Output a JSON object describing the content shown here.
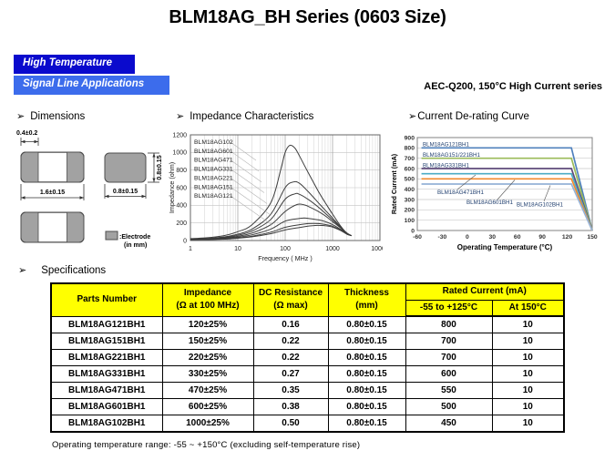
{
  "title": "BLM18AG_BH Series (0603 Size)",
  "badges": [
    {
      "label": "High Temperature",
      "bg": "#0A0ACD"
    },
    {
      "label": "Signal Line Applications",
      "bg": "#3C6CEC"
    }
  ],
  "subtitle": "AEC-Q200, 150°C High Current series",
  "sections": {
    "dimensions": {
      "arrow": "➢",
      "label": "Dimensions"
    },
    "impedance": {
      "arrow": "➢",
      "label": "Impedance  Characteristics"
    },
    "derating": {
      "arrow": "➢",
      "label": "Current  De-rating  Curve"
    },
    "specifications": {
      "arrow": "➢",
      "label": "Specifications"
    }
  },
  "dimensions_figure": {
    "top_width_dim": "0.4±0.2",
    "length_dim": "1.6±0.15",
    "side_height_dim": "0.8±0.15",
    "side_width_dim": "0.8±0.15",
    "legend_label": ":Electrode",
    "legend_unit": "(in mm)",
    "electrode_color": "#A2A2A2"
  },
  "chart_data": [
    {
      "type": "line",
      "title": "Impedance Characteristics",
      "xlabel": "Frequency ( MHz )",
      "ylabel": "Impedance (ohm)",
      "xscale": "log",
      "xlim": [
        1,
        10000
      ],
      "ylim": [
        0,
        1200
      ],
      "xticks": [
        1,
        10,
        100,
        1000,
        10000
      ],
      "yticks": [
        0,
        200,
        400,
        600,
        800,
        1000,
        1200
      ],
      "grid": true,
      "legend_position": "upper-left",
      "line_color": "#3d3d3d",
      "series": [
        {
          "name": "BLM18AG102",
          "points": [
            [
              1,
              22
            ],
            [
              2,
              30
            ],
            [
              5,
              55
            ],
            [
              10,
              100
            ],
            [
              20,
              180
            ],
            [
              50,
              430
            ],
            [
              80,
              800
            ],
            [
              100,
              1000
            ],
            [
              125,
              1080
            ],
            [
              160,
              1050
            ],
            [
              200,
              960
            ],
            [
              300,
              780
            ],
            [
              500,
              560
            ],
            [
              700,
              430
            ],
            [
              1000,
              300
            ],
            [
              1500,
              160
            ],
            [
              2000,
              85
            ],
            [
              2500,
              55
            ]
          ]
        },
        {
          "name": "BLM18AG601",
          "points": [
            [
              1,
              16
            ],
            [
              2,
              22
            ],
            [
              5,
              40
            ],
            [
              10,
              72
            ],
            [
              20,
              130
            ],
            [
              50,
              300
            ],
            [
              100,
              600
            ],
            [
              150,
              665
            ],
            [
              200,
              650
            ],
            [
              300,
              560
            ],
            [
              500,
              430
            ],
            [
              700,
              345
            ],
            [
              1000,
              255
            ],
            [
              1500,
              150
            ],
            [
              2000,
              85
            ],
            [
              2500,
              55
            ]
          ]
        },
        {
          "name": "BLM18AG471",
          "points": [
            [
              1,
              14
            ],
            [
              2,
              19
            ],
            [
              5,
              34
            ],
            [
              10,
              60
            ],
            [
              20,
              108
            ],
            [
              50,
              240
            ],
            [
              100,
              470
            ],
            [
              160,
              530
            ],
            [
              200,
              525
            ],
            [
              300,
              470
            ],
            [
              500,
              380
            ],
            [
              700,
              310
            ],
            [
              1000,
              235
            ],
            [
              1500,
              145
            ],
            [
              2000,
              82
            ],
            [
              2500,
              55
            ]
          ]
        },
        {
          "name": "BLM18AG331",
          "points": [
            [
              1,
              12
            ],
            [
              2,
              16
            ],
            [
              5,
              28
            ],
            [
              10,
              48
            ],
            [
              20,
              85
            ],
            [
              50,
              180
            ],
            [
              100,
              330
            ],
            [
              180,
              410
            ],
            [
              250,
              405
            ],
            [
              300,
              390
            ],
            [
              500,
              330
            ],
            [
              700,
              280
            ],
            [
              1000,
              215
            ],
            [
              1500,
              140
            ],
            [
              2000,
              80
            ],
            [
              2500,
              55
            ]
          ]
        },
        {
          "name": "BLM18AG221",
          "points": [
            [
              1,
              10
            ],
            [
              2,
              13
            ],
            [
              5,
              22
            ],
            [
              10,
              38
            ],
            [
              20,
              65
            ],
            [
              50,
              130
            ],
            [
              100,
              220
            ],
            [
              200,
              250
            ],
            [
              250,
              255
            ],
            [
              300,
              252
            ],
            [
              500,
              235
            ],
            [
              700,
              215
            ],
            [
              1000,
              180
            ],
            [
              1500,
              125
            ],
            [
              2000,
              78
            ],
            [
              2500,
              55
            ]
          ]
        },
        {
          "name": "BLM18AG151",
          "points": [
            [
              1,
              9
            ],
            [
              2,
              11
            ],
            [
              5,
              18
            ],
            [
              10,
              30
            ],
            [
              20,
              50
            ],
            [
              50,
              95
            ],
            [
              100,
              150
            ],
            [
              200,
              180
            ],
            [
              300,
              192
            ],
            [
              400,
              195
            ],
            [
              500,
              192
            ],
            [
              700,
              182
            ],
            [
              1000,
              162
            ],
            [
              1500,
              118
            ],
            [
              2000,
              75
            ],
            [
              2500,
              55
            ]
          ]
        },
        {
          "name": "BLM18AG121",
          "points": [
            [
              1,
              8
            ],
            [
              2,
              10
            ],
            [
              5,
              15
            ],
            [
              10,
              26
            ],
            [
              20,
              42
            ],
            [
              50,
              78
            ],
            [
              100,
              120
            ],
            [
              200,
              148
            ],
            [
              300,
              163
            ],
            [
              400,
              170
            ],
            [
              500,
              172
            ],
            [
              700,
              168
            ],
            [
              1000,
              152
            ],
            [
              1500,
              112
            ],
            [
              2000,
              72
            ],
            [
              2500,
              55
            ]
          ]
        }
      ]
    },
    {
      "type": "line",
      "title": "Current De-rating Curve",
      "xlabel": "Operating Temperature (°C)",
      "ylabel": "Rated Current (mA)",
      "xlim": [
        -60,
        150
      ],
      "ylim": [
        0,
        900
      ],
      "xticks": [
        -60,
        -30,
        0,
        30,
        60,
        90,
        120,
        150
      ],
      "yticks": [
        0,
        100,
        200,
        300,
        400,
        500,
        600,
        700,
        800,
        900
      ],
      "grid": true,
      "flat_from": -55,
      "flat_to": 125,
      "zero_at": 150,
      "label_color": "#1F3E6E",
      "series": [
        {
          "name": "BLM18AG121BH1",
          "value": 800,
          "color": "#4F81BD"
        },
        {
          "name": "BLM18AG151/221BH1",
          "value": 700,
          "color": "#9BBB59"
        },
        {
          "name": "BLM18AG331BH1",
          "value": 600,
          "color": "#5F497A"
        },
        {
          "name": "BLM18AG471BH1",
          "value": 550,
          "color": "#4BACC6"
        },
        {
          "name": "BLM18AG601BH1",
          "value": 500,
          "color": "#F28A2E"
        },
        {
          "name": "BLM18AG102BH1",
          "value": 450,
          "color": "#95B3D7"
        }
      ]
    }
  ],
  "spec_table": {
    "headers": {
      "parts": "Parts Number",
      "impedance_l1": "Impedance",
      "impedance_l2": "(Ω at 100 MHz)",
      "dcr_l1": "DC Resistance",
      "dcr_l2": "(Ω max)",
      "thickness_l1": "Thickness",
      "thickness_l2": "(mm)",
      "rated": "Rated Current  (mA)",
      "range1": "-55 to +125°C",
      "range2": "At 150°C"
    },
    "rows": [
      {
        "part": "BLM18AG121BH1",
        "impedance": "120±25%",
        "dcr": "0.16",
        "thickness": "0.80±0.15",
        "current_125": "800",
        "current_150": "10"
      },
      {
        "part": "BLM18AG151BH1",
        "impedance": "150±25%",
        "dcr": "0.22",
        "thickness": "0.80±0.15",
        "current_125": "700",
        "current_150": "10"
      },
      {
        "part": "BLM18AG221BH1",
        "impedance": "220±25%",
        "dcr": "0.22",
        "thickness": "0.80±0.15",
        "current_125": "700",
        "current_150": "10"
      },
      {
        "part": "BLM18AG331BH1",
        "impedance": "330±25%",
        "dcr": "0.27",
        "thickness": "0.80±0.15",
        "current_125": "600",
        "current_150": "10"
      },
      {
        "part": "BLM18AG471BH1",
        "impedance": "470±25%",
        "dcr": "0.35",
        "thickness": "0.80±0.15",
        "current_125": "550",
        "current_150": "10"
      },
      {
        "part": "BLM18AG601BH1",
        "impedance": "600±25%",
        "dcr": "0.38",
        "thickness": "0.80±0.15",
        "current_125": "500",
        "current_150": "10"
      },
      {
        "part": "BLM18AG102BH1",
        "impedance": "1000±25%",
        "dcr": "0.50",
        "thickness": "0.80±0.15",
        "current_125": "450",
        "current_150": "10"
      }
    ]
  },
  "footnote": "Operating  temperature  range: -55 ~ +150°C  (excluding  self-temperature  rise)"
}
